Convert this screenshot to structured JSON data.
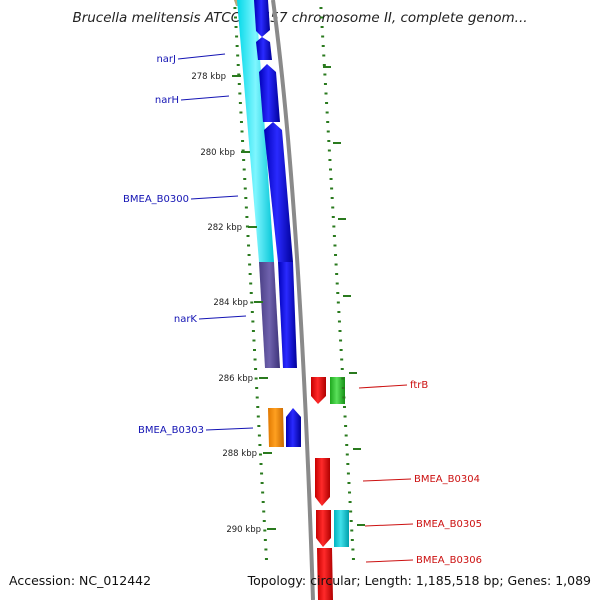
{
  "title": "Brucella melitensis ATCC 23457 chromosome II, complete genom...",
  "footer": {
    "accession": "Accession: NC_012442",
    "summary": "Topology: circular; Length: 1,185,518 bp; Genes: 1,089"
  },
  "colors": {
    "forward_label": "#1414b4",
    "reverse_label": "#cc1111",
    "tick": "#2a7a1e",
    "backbone": "#888888"
  },
  "ticks": [
    {
      "label": "278 kbp"
    },
    {
      "label": "280 kbp"
    },
    {
      "label": "282 kbp"
    },
    {
      "label": "284 kbp"
    },
    {
      "label": "286 kbp"
    },
    {
      "label": "288 kbp"
    },
    {
      "label": "290 kbp"
    }
  ],
  "gene_labels": [
    {
      "name": "narJ",
      "strand": "forward"
    },
    {
      "name": "narH",
      "strand": "forward"
    },
    {
      "name": "BMEA_B0300",
      "strand": "forward"
    },
    {
      "name": "narK",
      "strand": "forward"
    },
    {
      "name": "BMEA_B0303",
      "strand": "forward"
    },
    {
      "name": "ftrB",
      "strand": "reverse"
    },
    {
      "name": "BMEA_B0304",
      "strand": "reverse"
    },
    {
      "name": "BMEA_B0305",
      "strand": "reverse"
    },
    {
      "name": "BMEA_B0306",
      "strand": "reverse"
    }
  ]
}
